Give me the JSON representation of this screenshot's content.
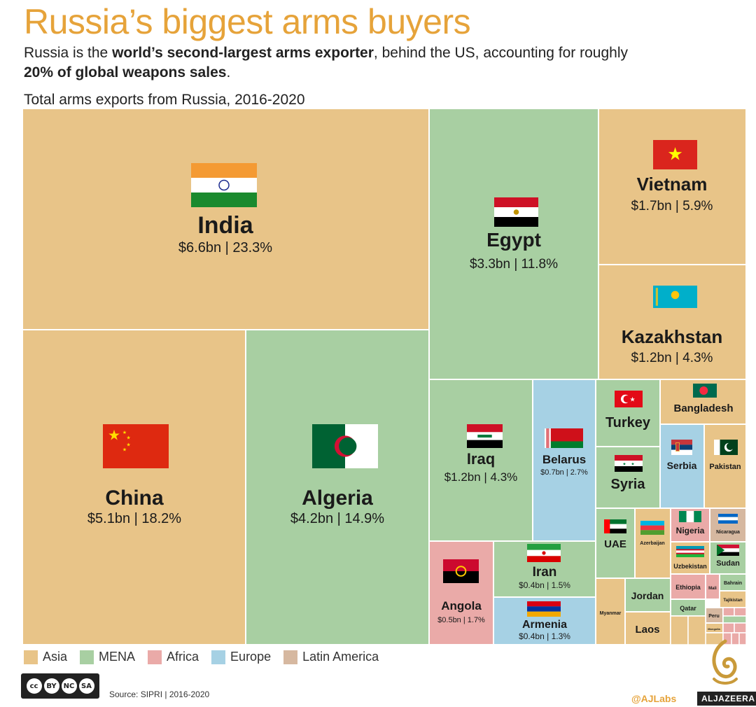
{
  "header": {
    "title": "Russia’s biggest arms buyers",
    "subtitle_pre": "Russia is the ",
    "subtitle_bold1": "world’s second-largest arms exporter",
    "subtitle_mid": ", behind the US, accounting for roughly ",
    "subtitle_bold2": "20% of global weapons sales",
    "subtitle_post": ".",
    "chart_label": "Total arms exports from Russia, 2016-2020"
  },
  "colors": {
    "Asia": "#e8c488",
    "MENA": "#a8cfa2",
    "Africa": "#eaaaa8",
    "Europe": "#a6d1e4",
    "Latin America": "#d6b8a0",
    "title": "#e6a33a"
  },
  "legend": [
    {
      "label": "Asia",
      "region": "Asia"
    },
    {
      "label": "MENA",
      "region": "MENA"
    },
    {
      "label": "Africa",
      "region": "Africa"
    },
    {
      "label": "Europe",
      "region": "Europe"
    },
    {
      "label": "Latin America",
      "region": "Latin America"
    }
  ],
  "chart_data": {
    "type": "treemap",
    "title": "Total arms exports from Russia, 2016-2020",
    "unit": "$bn",
    "items": [
      {
        "name": "India",
        "region": "Asia",
        "value_bn": 6.6,
        "share_pct": 23.3,
        "label": "$6.6bn | 23.3%",
        "flag": "india-flag"
      },
      {
        "name": "China",
        "region": "Asia",
        "value_bn": 5.1,
        "share_pct": 18.2,
        "label": "$5.1bn | 18.2%",
        "flag": "china-flag"
      },
      {
        "name": "Algeria",
        "region": "MENA",
        "value_bn": 4.2,
        "share_pct": 14.9,
        "label": "$4.2bn | 14.9%",
        "flag": "algeria-flag"
      },
      {
        "name": "Egypt",
        "region": "MENA",
        "value_bn": 3.3,
        "share_pct": 11.8,
        "label": "$3.3bn | 11.8%",
        "flag": "egypt-flag"
      },
      {
        "name": "Vietnam",
        "region": "Asia",
        "value_bn": 1.7,
        "share_pct": 5.9,
        "label": "$1.7bn | 5.9%",
        "flag": "vietnam-flag"
      },
      {
        "name": "Kazakhstan",
        "region": "Asia",
        "value_bn": 1.2,
        "share_pct": 4.3,
        "label": "$1.2bn | 4.3%",
        "flag": "kazakhstan-flag"
      },
      {
        "name": "Iraq",
        "region": "MENA",
        "value_bn": 1.2,
        "share_pct": 4.3,
        "label": "$1.2bn | 4.3%",
        "flag": "iraq-flag"
      },
      {
        "name": "Belarus",
        "region": "Europe",
        "value_bn": 0.7,
        "share_pct": 2.7,
        "label": "$0.7bn | 2.7%",
        "flag": "belarus-flag"
      },
      {
        "name": "Angola",
        "region": "Africa",
        "value_bn": 0.5,
        "share_pct": 1.7,
        "label": "$0.5bn | 1.7%",
        "flag": "angola-flag"
      },
      {
        "name": "Iran",
        "region": "MENA",
        "value_bn": 0.4,
        "share_pct": 1.5,
        "label": "$0.4bn | 1.5%",
        "flag": "iran-flag"
      },
      {
        "name": "Armenia",
        "region": "Europe",
        "value_bn": 0.4,
        "share_pct": 1.3,
        "label": "$0.4bn | 1.3%",
        "flag": "armenia-flag"
      },
      {
        "name": "Turkey",
        "region": "MENA",
        "value_bn": null,
        "share_pct": null,
        "label": "",
        "flag": "turkey-flag"
      },
      {
        "name": "Syria",
        "region": "MENA",
        "value_bn": null,
        "share_pct": null,
        "label": "",
        "flag": "syria-flag"
      },
      {
        "name": "Bangladesh",
        "region": "Asia",
        "value_bn": null,
        "share_pct": null,
        "label": "",
        "flag": "bangladesh-flag"
      },
      {
        "name": "Serbia",
        "region": "Europe",
        "value_bn": null,
        "share_pct": null,
        "label": "",
        "flag": "serbia-flag"
      },
      {
        "name": "Pakistan",
        "region": "Asia",
        "value_bn": null,
        "share_pct": null,
        "label": "",
        "flag": "pakistan-flag"
      },
      {
        "name": "UAE",
        "region": "MENA",
        "value_bn": null,
        "share_pct": null,
        "label": "",
        "flag": "uae-flag"
      },
      {
        "name": "Azerbaijan",
        "region": "Asia",
        "value_bn": null,
        "share_pct": null,
        "label": "",
        "flag": "azerbaijan-flag"
      },
      {
        "name": "Nigeria",
        "region": "Africa",
        "value_bn": null,
        "share_pct": null,
        "label": "",
        "flag": "nigeria-flag"
      },
      {
        "name": "Nicaragua",
        "region": "Latin America",
        "value_bn": null,
        "share_pct": null,
        "label": "",
        "flag": "nicaragua-flag"
      },
      {
        "name": "Uzbekistan",
        "region": "Asia",
        "value_bn": null,
        "share_pct": null,
        "label": "",
        "flag": "uzbekistan-flag"
      },
      {
        "name": "Sudan",
        "region": "MENA",
        "value_bn": null,
        "share_pct": null,
        "label": "",
        "flag": "sudan-flag"
      },
      {
        "name": "Jordan",
        "region": "MENA",
        "value_bn": null,
        "share_pct": null,
        "label": "",
        "flag": ""
      },
      {
        "name": "Myanmar",
        "region": "Asia",
        "value_bn": null,
        "share_pct": null,
        "label": "",
        "flag": ""
      },
      {
        "name": "Laos",
        "region": "Asia",
        "value_bn": null,
        "share_pct": null,
        "label": "",
        "flag": ""
      },
      {
        "name": "Ethiopia",
        "region": "Africa",
        "value_bn": null,
        "share_pct": null,
        "label": "",
        "flag": ""
      },
      {
        "name": "Mali",
        "region": "Africa",
        "value_bn": null,
        "share_pct": null,
        "label": "",
        "flag": ""
      },
      {
        "name": "Bahrain",
        "region": "MENA",
        "value_bn": null,
        "share_pct": null,
        "label": "",
        "flag": ""
      },
      {
        "name": "Tajikistan",
        "region": "Asia",
        "value_bn": null,
        "share_pct": null,
        "label": "",
        "flag": ""
      },
      {
        "name": "Qatar",
        "region": "MENA",
        "value_bn": null,
        "share_pct": null,
        "label": "",
        "flag": ""
      },
      {
        "name": "Peru",
        "region": "Latin America",
        "value_bn": null,
        "share_pct": null,
        "label": "",
        "flag": ""
      },
      {
        "name": "Mongolia",
        "region": "Asia",
        "value_bn": null,
        "share_pct": null,
        "label": "",
        "flag": ""
      }
    ]
  },
  "footer": {
    "cc_labels": [
      "BY",
      "NC",
      "SA"
    ],
    "source": "Source: SIPRI | 2016-2020",
    "handle": "@AJLabs",
    "brand": "ALJAZEERA"
  }
}
